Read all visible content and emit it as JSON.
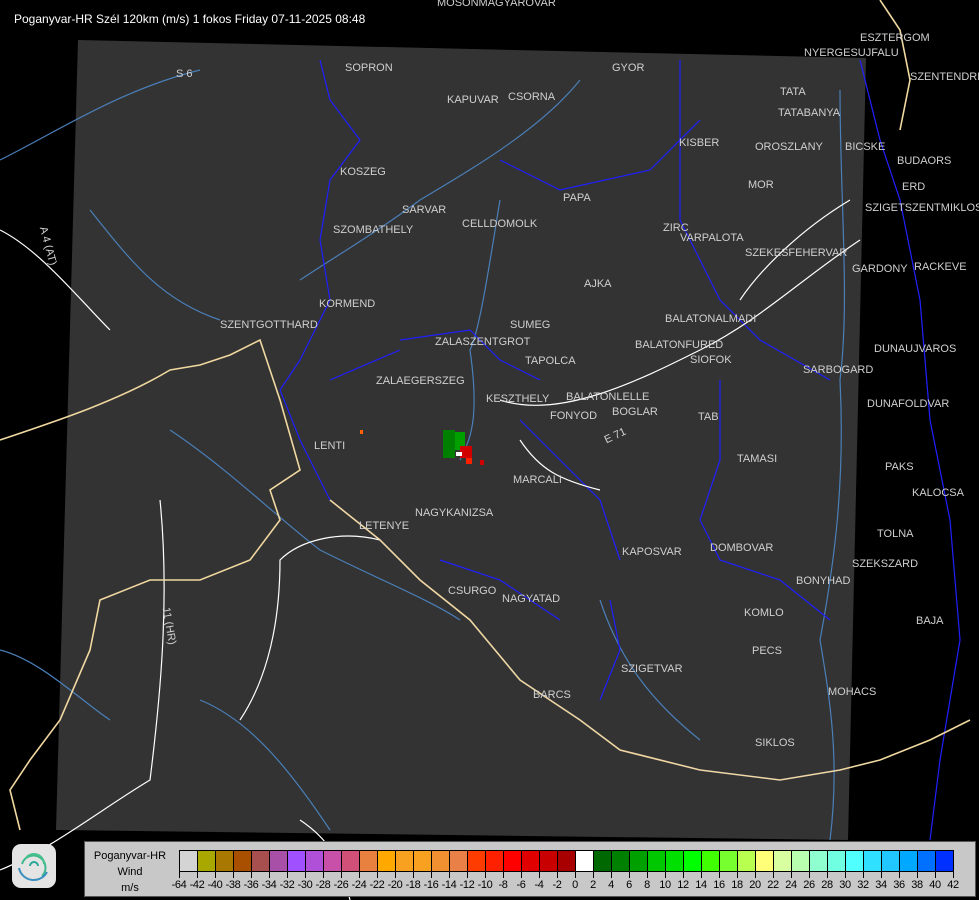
{
  "title": "Poganyvar-HR Szél 120km (m/s) 1 fokos Friday 07-11-2025 08:48",
  "road_labels": [
    "S 6",
    "A 4 (AT)",
    "11 (HR)",
    "E 71"
  ],
  "cities": [
    {
      "name": "MOSONMAGYAROVAR"
    },
    {
      "name": "SOPRON"
    },
    {
      "name": "GYOR"
    },
    {
      "name": "KAPUVAR"
    },
    {
      "name": "CSORNA"
    },
    {
      "name": "NYERGESUJFALU"
    },
    {
      "name": "ESZTERGOM"
    },
    {
      "name": "SZENTENDRE"
    },
    {
      "name": "TATA"
    },
    {
      "name": "TATABANYA"
    },
    {
      "name": "KISBER"
    },
    {
      "name": "OROSZLANY"
    },
    {
      "name": "BICSKE"
    },
    {
      "name": "BUDAORS"
    },
    {
      "name": "ERD"
    },
    {
      "name": "MOR"
    },
    {
      "name": "KOSZEG"
    },
    {
      "name": "PAPA"
    },
    {
      "name": "SZIGETSZENTMIKLOS"
    },
    {
      "name": "SARVAR"
    },
    {
      "name": "SZOMBATHELY"
    },
    {
      "name": "CELLDOMOLK"
    },
    {
      "name": "ZIRC"
    },
    {
      "name": "VARPALOTA"
    },
    {
      "name": "SZEKESFEHERVAR"
    },
    {
      "name": "GARDONY"
    },
    {
      "name": "RACKEVE"
    },
    {
      "name": "AJKA"
    },
    {
      "name": "KORMEND"
    },
    {
      "name": "BALATONALMADI"
    },
    {
      "name": "SZENTGOTTHARD"
    },
    {
      "name": "SUMEG"
    },
    {
      "name": "ZALASZENTGROT"
    },
    {
      "name": "BALATONFURED"
    },
    {
      "name": "SIOFOK"
    },
    {
      "name": "DUNAUJVAROS"
    },
    {
      "name": "TAPOLCA"
    },
    {
      "name": "SARBOGARD"
    },
    {
      "name": "ZALAEGERSZEG"
    },
    {
      "name": "KESZTHELY"
    },
    {
      "name": "BALATONLELLE"
    },
    {
      "name": "BOGLAR"
    },
    {
      "name": "FONYOD"
    },
    {
      "name": "DUNAFOLDVAR"
    },
    {
      "name": "TAB"
    },
    {
      "name": "LENTI"
    },
    {
      "name": "TAMASI"
    },
    {
      "name": "PAKS"
    },
    {
      "name": "MARCALI"
    },
    {
      "name": "KALOCSA"
    },
    {
      "name": "NAGYKANIZSA"
    },
    {
      "name": "LETENYE"
    },
    {
      "name": "TOLNA"
    },
    {
      "name": "DOMBOVAR"
    },
    {
      "name": "KAPOSVAR"
    },
    {
      "name": "SZEKSZARD"
    },
    {
      "name": "BONYHAD"
    },
    {
      "name": "CSURGO"
    },
    {
      "name": "NAGYATAD"
    },
    {
      "name": "KOMLO"
    },
    {
      "name": "BAJA"
    },
    {
      "name": "PECS"
    },
    {
      "name": "SZIGETVAR"
    },
    {
      "name": "MOHACS"
    },
    {
      "name": "BARCS"
    },
    {
      "name": "SIKLOS"
    }
  ],
  "legend": {
    "name": "Poganyvar-HR",
    "quantity": "Wind",
    "unit": "m/s",
    "colors": [
      "#d4d4d4",
      "#a8a800",
      "#a87800",
      "#a85000",
      "#a85050",
      "#a850a8",
      "#a050ff",
      "#b050d8",
      "#c850a8",
      "#d05078",
      "#e88040",
      "#ffa800",
      "#f8a020",
      "#f8a020",
      "#f09030",
      "#e88048",
      "#ff3c00",
      "#ff2000",
      "#ff0000",
      "#e00000",
      "#c80000",
      "#a80000",
      "#ffffff",
      "#006800",
      "#008000",
      "#00a000",
      "#00c800",
      "#00e000",
      "#00ff00",
      "#40ff00",
      "#78ff30",
      "#b8ff50",
      "#ffff78",
      "#d8ffa0",
      "#b8ffb0",
      "#90ffd0",
      "#70ffe0",
      "#50ffff",
      "#30e0ff",
      "#20c8ff",
      "#00a8ff",
      "#0070ff",
      "#0030ff",
      "#0000ff"
    ],
    "labels": [
      "-64",
      "-42",
      "-40",
      "-38",
      "-36",
      "-34",
      "-32",
      "-30",
      "-28",
      "-26",
      "-24",
      "-22",
      "-20",
      "-18",
      "-16",
      "-14",
      "-12",
      "-10",
      "-8",
      "-6",
      "-4",
      "-2",
      "0",
      "2",
      "4",
      "6",
      "8",
      "10",
      "12",
      "14",
      "16",
      "18",
      "20",
      "22",
      "24",
      "26",
      "28",
      "30",
      "32",
      "34",
      "36",
      "38",
      "40",
      "42"
    ]
  },
  "colors": {
    "coverage": "#333333",
    "borders": "#1a1aff",
    "rivers": "#4a7fb8",
    "roads": "#ffffff",
    "country_border": "#f0d8a0",
    "radar_approach": "#008000",
    "radar_recede": "#d00000"
  }
}
